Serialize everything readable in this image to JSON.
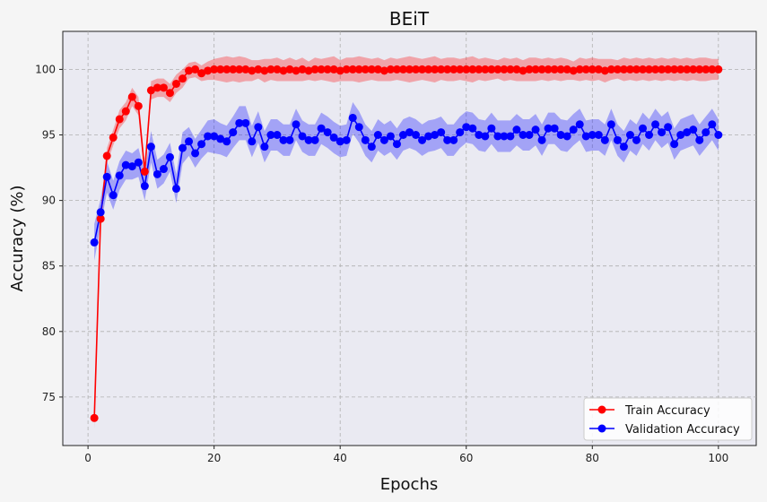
{
  "chart_data": {
    "type": "line",
    "title": "BEiT",
    "xlabel": "Epochs",
    "ylabel": "Accuracy (%)",
    "xlim": [
      -4,
      106
    ],
    "ylim": [
      71.3,
      102.9
    ],
    "x_ticks": [
      0,
      20,
      40,
      60,
      80,
      100
    ],
    "y_ticks": [
      75,
      80,
      85,
      90,
      95,
      100
    ],
    "grid": true,
    "legend_position": "lower-right",
    "colors": {
      "plot_bg": "#eaeaf2",
      "train": "#ff0000",
      "validation": "#0000ff",
      "grid": "#b0b0b0"
    },
    "x": [
      1,
      2,
      3,
      4,
      5,
      6,
      7,
      8,
      9,
      10,
      11,
      12,
      13,
      14,
      15,
      16,
      17,
      18,
      19,
      20,
      21,
      22,
      23,
      24,
      25,
      26,
      27,
      28,
      29,
      30,
      31,
      32,
      33,
      34,
      35,
      36,
      37,
      38,
      39,
      40,
      41,
      42,
      43,
      44,
      45,
      46,
      47,
      48,
      49,
      50,
      51,
      52,
      53,
      54,
      55,
      56,
      57,
      58,
      59,
      60,
      61,
      62,
      63,
      64,
      65,
      66,
      67,
      68,
      69,
      70,
      71,
      72,
      73,
      74,
      75,
      76,
      77,
      78,
      79,
      80,
      81,
      82,
      83,
      84,
      85,
      86,
      87,
      88,
      89,
      90,
      91,
      92,
      93,
      94,
      95,
      96,
      97,
      98,
      99,
      100
    ],
    "series": [
      {
        "name": "Train Accuracy",
        "values": [
          73.4,
          88.6,
          93.4,
          94.8,
          96.2,
          96.8,
          97.9,
          97.2,
          92.2,
          98.4,
          98.6,
          98.6,
          98.2,
          98.9,
          99.3,
          99.9,
          100,
          99.7,
          99.9,
          100,
          100,
          100,
          100,
          100,
          100,
          99.9,
          100,
          99.9,
          100,
          100,
          99.9,
          100,
          99.9,
          100,
          99.9,
          100,
          100,
          100,
          100,
          99.9,
          100,
          100,
          100,
          100,
          100,
          100,
          99.9,
          100,
          100,
          100,
          100,
          100,
          100,
          100,
          100,
          100,
          100,
          100,
          100,
          100,
          100,
          100,
          100,
          100,
          100,
          100,
          100,
          100,
          99.9,
          100,
          100,
          100,
          100,
          100,
          100,
          100,
          99.9,
          100,
          100,
          100,
          100,
          99.9,
          100,
          100,
          100,
          100,
          100,
          100,
          100,
          100,
          100,
          100,
          100,
          100,
          100,
          100,
          100,
          100,
          100,
          100
        ],
        "band": [
          0.8,
          0.5,
          0.6,
          0.6,
          0.7,
          0.7,
          0.7,
          0.7,
          0.6,
          0.7,
          0.7,
          0.7,
          0.7,
          0.7,
          0.7,
          0.6,
          0.6,
          0.6,
          0.7,
          0.8,
          0.9,
          1.0,
          0.9,
          1.0,
          0.9,
          0.8,
          0.7,
          0.9,
          0.8,
          0.9,
          0.8,
          0.9,
          0.8,
          0.9,
          0.7,
          0.9,
          0.8,
          0.9,
          1.0,
          0.8,
          0.9,
          0.9,
          1.0,
          0.9,
          0.8,
          0.9,
          0.8,
          0.9,
          0.8,
          0.9,
          1.0,
          0.9,
          0.8,
          0.9,
          1.0,
          0.8,
          0.9,
          0.9,
          0.8,
          0.9,
          1.0,
          0.8,
          0.9,
          0.8,
          0.7,
          0.9,
          0.8,
          0.9,
          0.8,
          0.9,
          0.9,
          0.8,
          0.9,
          0.8,
          0.9,
          0.8,
          0.7,
          0.9,
          0.8,
          0.9,
          0.8,
          0.9,
          0.8,
          0.7,
          0.9,
          0.8,
          0.9,
          0.8,
          0.9,
          0.8,
          0.9,
          0.8,
          0.9,
          0.8,
          0.9,
          0.8,
          0.9,
          0.9,
          0.8,
          0.8
        ]
      },
      {
        "name": "Validation Accuracy",
        "values": [
          86.8,
          89.1,
          91.8,
          90.4,
          91.9,
          92.7,
          92.6,
          92.9,
          91.1,
          94.1,
          92.0,
          92.4,
          93.3,
          90.9,
          94.0,
          94.5,
          93.6,
          94.3,
          94.9,
          94.9,
          94.7,
          94.5,
          95.2,
          95.9,
          95.9,
          94.5,
          95.6,
          94.1,
          95.0,
          95.0,
          94.6,
          94.6,
          95.8,
          94.9,
          94.6,
          94.6,
          95.5,
          95.2,
          94.8,
          94.5,
          94.6,
          96.3,
          95.6,
          94.6,
          94.1,
          95.0,
          94.6,
          94.9,
          94.3,
          95.0,
          95.2,
          95.0,
          94.6,
          94.9,
          95.0,
          95.2,
          94.6,
          94.6,
          95.2,
          95.6,
          95.5,
          95.0,
          94.9,
          95.5,
          94.9,
          94.9,
          94.9,
          95.4,
          95.0,
          95.0,
          95.4,
          94.6,
          95.5,
          95.5,
          95.0,
          94.9,
          95.4,
          95.8,
          94.9,
          95.0,
          95.0,
          94.6,
          95.8,
          94.6,
          94.1,
          95.0,
          94.6,
          95.5,
          95.0,
          95.8,
          95.2,
          95.6,
          94.3,
          95.0,
          95.2,
          95.4,
          94.6,
          95.2,
          95.8,
          95.0
        ],
        "band": [
          1.4,
          1.0,
          1.2,
          1.1,
          1.1,
          1.1,
          1.0,
          1.1,
          1.1,
          1.2,
          1.1,
          1.1,
          1.1,
          1.1,
          1.2,
          1.1,
          1.1,
          1.1,
          1.2,
          1.3,
          1.2,
          1.2,
          1.2,
          1.3,
          1.3,
          1.2,
          1.2,
          1.2,
          1.2,
          1.2,
          1.2,
          1.2,
          1.2,
          1.2,
          1.2,
          1.2,
          1.2,
          1.2,
          1.2,
          1.2,
          1.2,
          1.2,
          1.2,
          1.2,
          1.2,
          1.2,
          1.2,
          1.2,
          1.2,
          1.2,
          1.2,
          1.2,
          1.2,
          1.2,
          1.2,
          1.2,
          1.2,
          1.2,
          1.2,
          1.2,
          1.2,
          1.2,
          1.2,
          1.2,
          1.2,
          1.2,
          1.2,
          1.2,
          1.2,
          1.2,
          1.2,
          1.2,
          1.2,
          1.2,
          1.2,
          1.2,
          1.2,
          1.2,
          1.2,
          1.2,
          1.2,
          1.2,
          1.2,
          1.2,
          1.2,
          1.2,
          1.2,
          1.2,
          1.2,
          1.2,
          1.2,
          1.2,
          1.2,
          1.2,
          1.2,
          1.2,
          1.2,
          1.2,
          1.2,
          1.2
        ]
      }
    ]
  }
}
